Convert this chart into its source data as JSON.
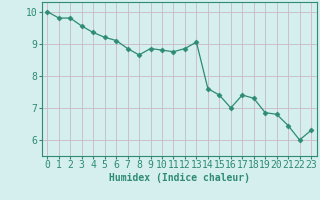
{
  "x": [
    0,
    1,
    2,
    3,
    4,
    5,
    6,
    7,
    8,
    9,
    10,
    11,
    12,
    13,
    14,
    15,
    16,
    17,
    18,
    19,
    20,
    21,
    22,
    23
  ],
  "y": [
    10.0,
    9.8,
    9.8,
    9.55,
    9.35,
    9.2,
    9.1,
    8.85,
    8.65,
    8.85,
    8.8,
    8.75,
    8.85,
    9.05,
    7.6,
    7.4,
    7.0,
    7.4,
    7.3,
    6.85,
    6.8,
    6.45,
    6.0,
    6.3
  ],
  "line_color": "#2e8b74",
  "marker": "D",
  "marker_size": 2.5,
  "bg_color": "#d5eeee",
  "grid_color": "#c8b8c8",
  "xlabel": "Humidex (Indice chaleur)",
  "xlabel_fontsize": 7,
  "tick_fontsize": 7,
  "ylim": [
    5.5,
    10.3
  ],
  "xlim": [
    -0.5,
    23.5
  ],
  "yticks": [
    6,
    7,
    8,
    9,
    10
  ],
  "xticks": [
    0,
    1,
    2,
    3,
    4,
    5,
    6,
    7,
    8,
    9,
    10,
    11,
    12,
    13,
    14,
    15,
    16,
    17,
    18,
    19,
    20,
    21,
    22,
    23
  ]
}
